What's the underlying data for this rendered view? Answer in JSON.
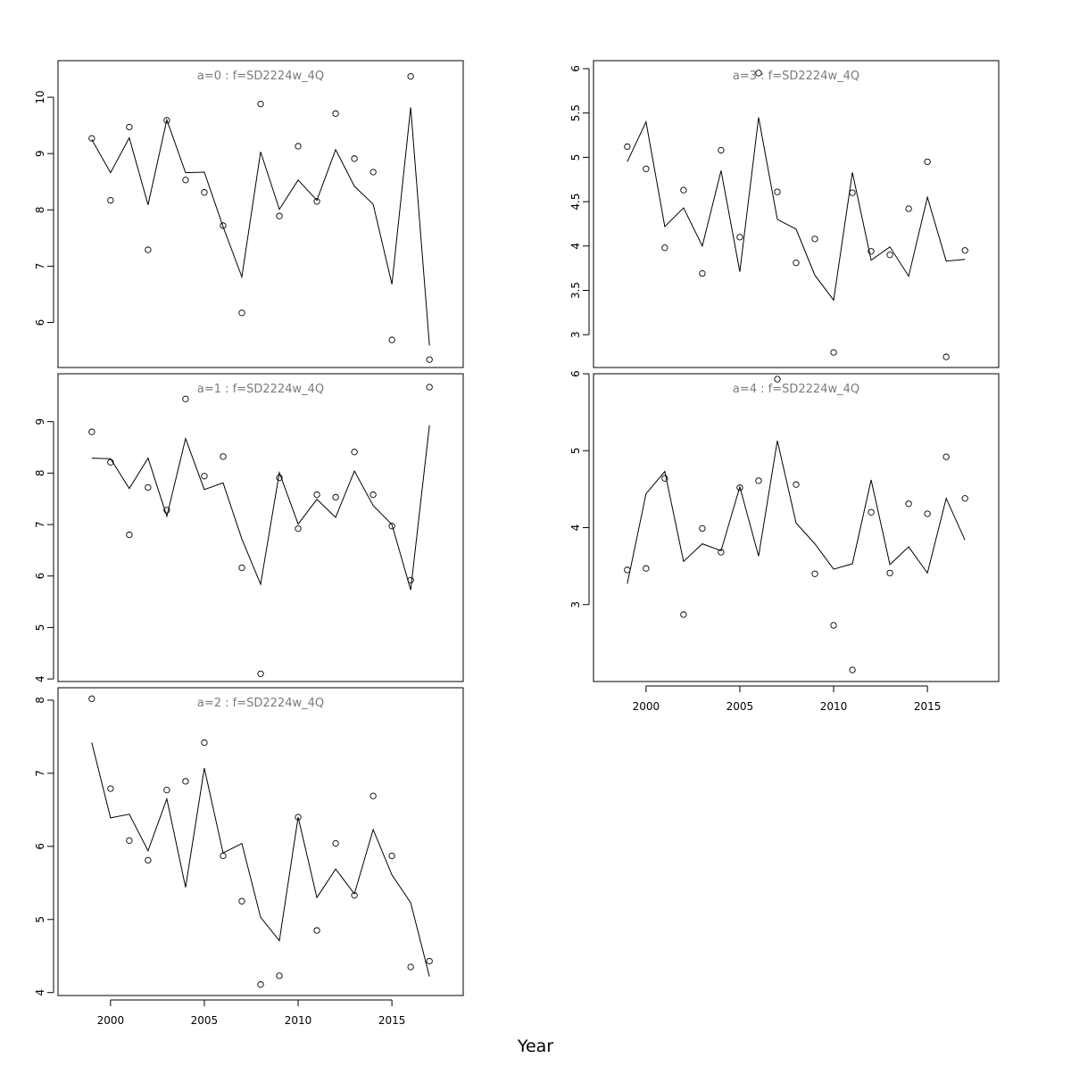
{
  "xlabel": "Year",
  "chart_data": [
    {
      "type": "line",
      "title": "a=0 : f=SD2224w_4Q",
      "x": [
        1999,
        2000,
        2001,
        2002,
        2003,
        2004,
        2005,
        2006,
        2007,
        2008,
        2009,
        2010,
        2011,
        2012,
        2013,
        2014,
        2015,
        2016,
        2017
      ],
      "series": [
        {
          "kind": "observed-points",
          "values": [
            9.27,
            8.17,
            9.47,
            7.29,
            9.59,
            8.53,
            8.31,
            7.72,
            6.17,
            9.88,
            7.89,
            9.13,
            8.15,
            9.71,
            8.91,
            8.67,
            5.69,
            10.37,
            5.34
          ]
        },
        {
          "kind": "fitted-line",
          "values": [
            9.25,
            8.66,
            9.28,
            8.09,
            9.6,
            8.66,
            8.67,
            7.7,
            6.81,
            9.03,
            8.01,
            8.53,
            8.17,
            9.07,
            8.42,
            8.1,
            6.68,
            9.82,
            5.59
          ]
        }
      ],
      "xlim": [
        1997.2,
        2018.8
      ],
      "ylim": [
        5.2,
        10.65
      ],
      "yticks": [
        6,
        7,
        8,
        9,
        10
      ],
      "xticks": [
        2000,
        2005,
        2010,
        2015
      ],
      "show_xaxis": false,
      "grid": false
    },
    {
      "type": "line",
      "title": "a=1 : f=SD2224w_4Q",
      "x": [
        1999,
        2000,
        2001,
        2002,
        2003,
        2004,
        2005,
        2006,
        2007,
        2008,
        2009,
        2010,
        2011,
        2012,
        2013,
        2014,
        2015,
        2016,
        2017
      ],
      "series": [
        {
          "kind": "observed-points",
          "values": [
            8.8,
            8.21,
            6.8,
            7.72,
            7.28,
            9.44,
            7.94,
            8.32,
            6.16,
            4.1,
            7.91,
            6.92,
            7.58,
            7.53,
            8.41,
            7.58,
            6.97,
            5.92,
            9.67
          ]
        },
        {
          "kind": "fitted-line",
          "values": [
            8.29,
            8.28,
            7.7,
            8.29,
            7.16,
            8.67,
            7.68,
            7.81,
            6.72,
            5.84,
            8.01,
            7.01,
            7.49,
            7.14,
            8.04,
            7.37,
            7.0,
            5.73,
            8.93
          ]
        }
      ],
      "xlim": [
        1997.2,
        2018.8
      ],
      "ylim": [
        3.95,
        9.93
      ],
      "yticks": [
        4,
        5,
        6,
        7,
        8,
        9
      ],
      "xticks": [
        2000,
        2005,
        2010,
        2015
      ],
      "show_xaxis": false,
      "grid": false
    },
    {
      "type": "line",
      "title": "a=2 : f=SD2224w_4Q",
      "x": [
        1999,
        2000,
        2001,
        2002,
        2003,
        2004,
        2005,
        2006,
        2007,
        2008,
        2009,
        2010,
        2011,
        2012,
        2013,
        2014,
        2015,
        2016,
        2017
      ],
      "series": [
        {
          "kind": "observed-points",
          "values": [
            8.02,
            6.79,
            6.08,
            5.81,
            6.77,
            6.89,
            7.42,
            5.87,
            5.25,
            4.11,
            4.23,
            6.4,
            4.85,
            6.04,
            5.33,
            6.69,
            5.87,
            4.35,
            4.43
          ]
        },
        {
          "kind": "fitted-line",
          "values": [
            7.42,
            6.39,
            6.44,
            5.94,
            6.65,
            5.44,
            7.07,
            5.91,
            6.04,
            5.03,
            4.71,
            6.4,
            5.3,
            5.69,
            5.35,
            6.23,
            5.61,
            5.23,
            4.22
          ]
        }
      ],
      "xlim": [
        1997.2,
        2018.8
      ],
      "ylim": [
        3.96,
        8.17
      ],
      "yticks": [
        4,
        5,
        6,
        7,
        8
      ],
      "xticks": [
        2000,
        2005,
        2010,
        2015
      ],
      "show_xaxis": true,
      "grid": false
    },
    {
      "type": "line",
      "title": "a=3 : f=SD2224w_4Q",
      "x": [
        1999,
        2000,
        2001,
        2002,
        2003,
        2004,
        2005,
        2006,
        2007,
        2008,
        2009,
        2010,
        2011,
        2012,
        2013,
        2014,
        2015,
        2016,
        2017
      ],
      "series": [
        {
          "kind": "observed-points",
          "values": [
            5.12,
            4.87,
            3.98,
            4.63,
            3.69,
            5.08,
            4.1,
            5.95,
            4.61,
            3.81,
            4.08,
            2.8,
            4.6,
            3.94,
            3.9,
            4.42,
            4.95,
            2.75,
            3.95
          ]
        },
        {
          "kind": "fitted-line",
          "values": [
            4.95,
            5.4,
            4.22,
            4.43,
            4.0,
            4.85,
            3.71,
            5.45,
            4.3,
            4.19,
            3.67,
            3.39,
            4.83,
            3.84,
            3.99,
            3.66,
            4.55,
            3.83,
            3.85
          ]
        }
      ],
      "xlim": [
        1997.2,
        2018.8
      ],
      "ylim": [
        2.63,
        6.09
      ],
      "yticks": [
        3.0,
        3.5,
        4.0,
        4.5,
        5.0,
        5.5,
        6.0
      ],
      "xticks": [
        2000,
        2005,
        2010,
        2015
      ],
      "show_xaxis": false,
      "grid": false
    },
    {
      "type": "line",
      "title": "a=4 : f=SD2224w_4Q",
      "x": [
        1999,
        2000,
        2001,
        2002,
        2003,
        2004,
        2005,
        2006,
        2007,
        2008,
        2009,
        2010,
        2011,
        2012,
        2013,
        2014,
        2015,
        2016,
        2017
      ],
      "series": [
        {
          "kind": "observed-points",
          "values": [
            3.45,
            3.47,
            4.64,
            2.87,
            3.99,
            3.68,
            4.52,
            4.61,
            5.93,
            4.56,
            3.4,
            2.73,
            2.15,
            4.2,
            3.41,
            4.31,
            4.18,
            4.92,
            4.38
          ]
        },
        {
          "kind": "fitted-line",
          "values": [
            3.27,
            4.44,
            4.73,
            3.56,
            3.79,
            3.7,
            4.53,
            3.63,
            5.13,
            4.06,
            3.79,
            3.46,
            3.53,
            4.62,
            3.52,
            3.75,
            3.41,
            4.38,
            3.84
          ]
        }
      ],
      "xlim": [
        1997.2,
        2018.8
      ],
      "ylim": [
        2.0,
        6.0
      ],
      "yticks": [
        3,
        4,
        5,
        6
      ],
      "xticks": [
        2000,
        2005,
        2010,
        2015
      ],
      "show_xaxis": true,
      "grid": false
    }
  ]
}
